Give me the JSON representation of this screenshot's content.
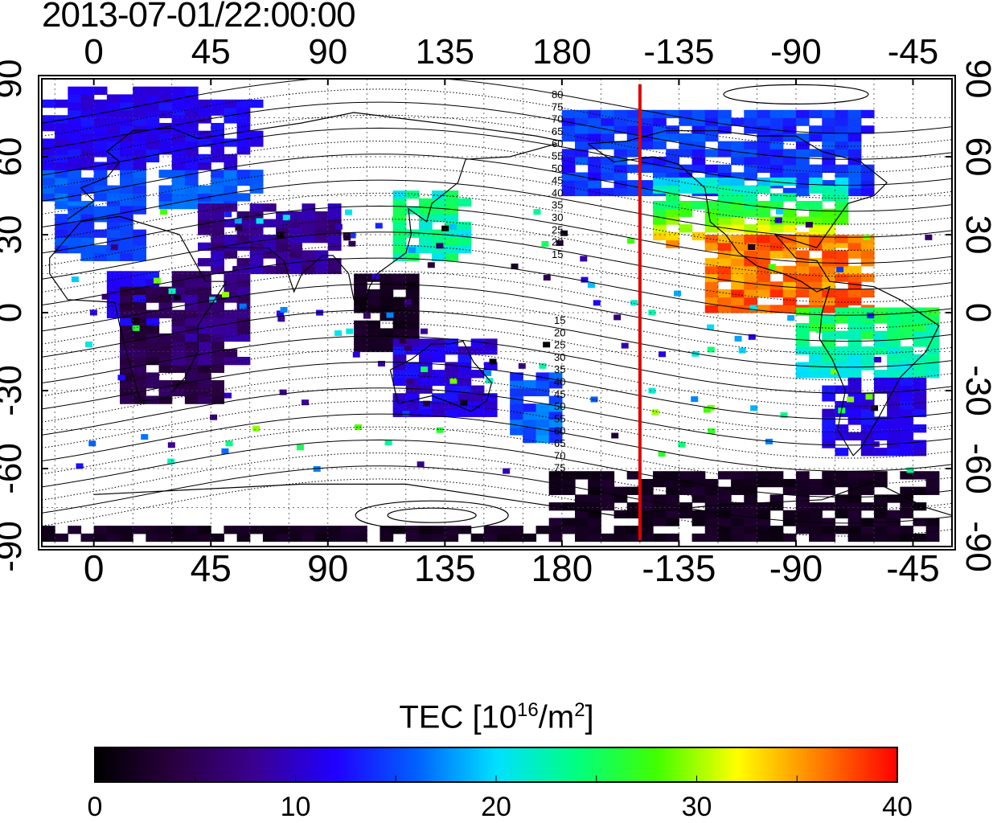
{
  "title": "2013-07-01/22:00:00",
  "top_lon_ticks": [
    "0",
    "45",
    "90",
    "135",
    "180",
    "-135",
    "-90",
    "-45"
  ],
  "bottom_lon_ticks": [
    "0",
    "45",
    "90",
    "135",
    "180",
    "-135",
    "-90",
    "-45"
  ],
  "left_lat_ticks": [
    "90",
    "60",
    "30",
    "0",
    "-30",
    "-60",
    "-90"
  ],
  "right_lat_ticks": [
    "90",
    "60",
    "30",
    "0",
    "-30",
    "-60",
    "-90"
  ],
  "contour_labels_upper": [
    "80",
    "75",
    "70",
    "65",
    "60",
    "55",
    "50",
    "45",
    "40",
    "35",
    "30",
    "25",
    "20",
    "15"
  ],
  "contour_labels_lower": [
    "15",
    "20",
    "25",
    "30",
    "35",
    "40",
    "45",
    "50",
    "55",
    "60",
    "65",
    "70",
    "75"
  ],
  "colorbar": {
    "label_main": "TEC  [10",
    "label_exp": "16",
    "label_mid": "/m",
    "label_exp2": "2",
    "label_end": "]",
    "ticks": [
      "0",
      "10",
      "20",
      "30",
      "40"
    ],
    "min": 0,
    "max": 40,
    "colors": [
      "#000000",
      "#2a0040",
      "#3a0090",
      "#2000ff",
      "#0060ff",
      "#00e0ff",
      "#00ff80",
      "#40ff00",
      "#ffff00",
      "#ff8000",
      "#ff0000"
    ]
  },
  "marker_line": {
    "longitude": -150,
    "color": "#e00000"
  },
  "map_data": {
    "lon_range": [
      -20,
      330
    ],
    "lat_range": [
      -90,
      90
    ],
    "grid_step": 30
  }
}
